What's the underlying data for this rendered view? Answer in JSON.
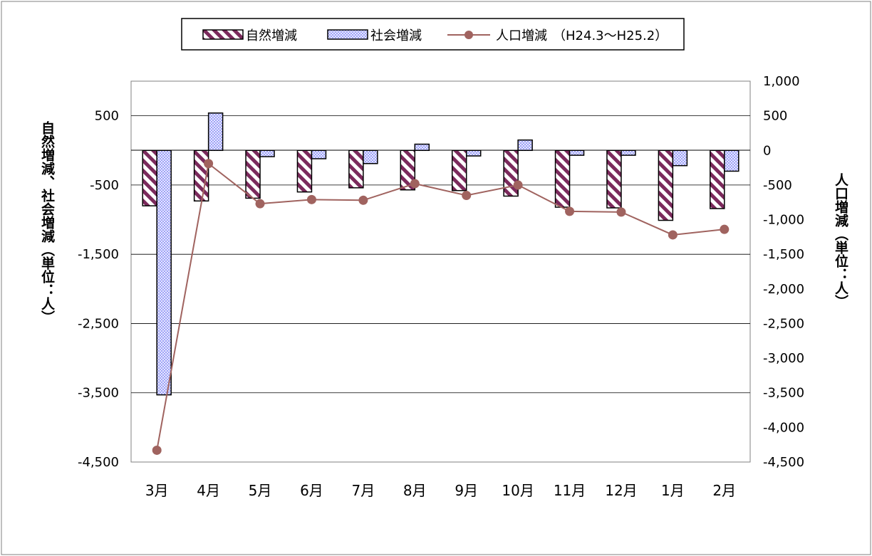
{
  "chart_data": {
    "type": "bar",
    "categories": [
      "3月",
      "4月",
      "5月",
      "6月",
      "7月",
      "8月",
      "9月",
      "10月",
      "11月",
      "12月",
      "1月",
      "2月"
    ],
    "series": [
      {
        "name": "自然増減",
        "kind": "bar",
        "axis": "left",
        "color": "#7b2a5c",
        "values": [
          -800,
          -730,
          -690,
          -600,
          -540,
          -570,
          -580,
          -660,
          -820,
          -830,
          -1010,
          -840
        ]
      },
      {
        "name": "社会増減",
        "kind": "bar",
        "axis": "left",
        "color": "#8a8ef0",
        "values": [
          -3530,
          540,
          -90,
          -120,
          -190,
          90,
          -80,
          150,
          -70,
          -70,
          -220,
          -300
        ]
      },
      {
        "name": "人口増減",
        "kind": "line",
        "axis": "right",
        "color": "#a0635f",
        "values": [
          -4330,
          -190,
          -770,
          -710,
          -720,
          -480,
          -650,
          -500,
          -880,
          -890,
          -1220,
          -1140
        ]
      }
    ],
    "legend_note": "（H24.3～H25.2）",
    "y_left": {
      "label": "自然増減、社会増減（単位：人）",
      "range": [
        -4500,
        1000
      ],
      "ticks": [
        500,
        -500,
        -1500,
        -2500,
        -3500,
        -4500
      ],
      "tick_labels": [
        "500",
        "-500",
        "-1,500",
        "-2,500",
        "-3,500",
        "-4,500"
      ]
    },
    "y_right": {
      "label": "人口増減（単位：人）",
      "range": [
        -4500,
        1000
      ],
      "ticks": [
        1000,
        500,
        0,
        -500,
        -1000,
        -1500,
        -2000,
        -2500,
        -3000,
        -3500,
        -4000,
        -4500
      ],
      "tick_labels": [
        "1,000",
        "500",
        "0",
        "-500",
        "-1,000",
        "-1,500",
        "-2,000",
        "-2,500",
        "-3,000",
        "-3,500",
        "-4,000",
        "-4,500"
      ]
    },
    "gridlines": [
      500,
      -500,
      -1500,
      -2500,
      -3500
    ],
    "legend_position": "top-center"
  }
}
